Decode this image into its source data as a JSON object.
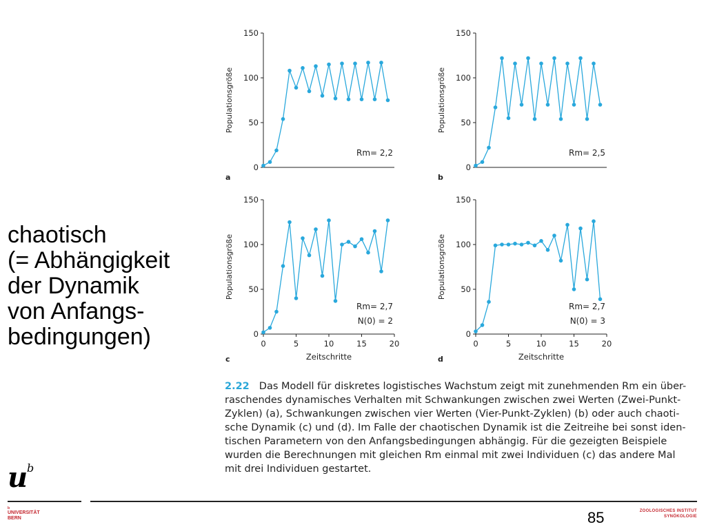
{
  "side_text": {
    "lines": [
      "chaotisch",
      "(= Abhängigkeit",
      "der Dynamik",
      "von Anfangs-",
      "bedingungen)"
    ]
  },
  "caption": {
    "number": "2.22",
    "lines": [
      "Das Modell für diskretes logistisches Wachstum zeigt mit zunehmenden Rm ein über-",
      "raschendes dynamisches Verhalten mit Schwankungen zwischen zwei Werten (Zwei-Punkt-",
      "Zyklen) (a), Schwankungen zwischen vier Werten (Vier-Punkt-Zyklen) (b) oder auch chaoti-",
      "sche Dynamik (c) und (d). Im Falle der chaotischen Dynamik ist die Zeitreihe bei sonst iden-",
      "tischen Parametern von den Anfangsbedingungen abhängig. Für die gezeigten Beispiele",
      "wurden die Berechnungen mit gleichen Rm einmal mit zwei Individuen (c) das andere Mal",
      "mit drei Individuen gestartet."
    ]
  },
  "footer": {
    "logo_u": "u",
    "logo_b": "b",
    "university_b": "b",
    "university_name": "UNIVERSITÄT",
    "university_city": "BERN",
    "page_number": "85",
    "institute_line1": "ZOOLOGISCHES INSTITUT",
    "institute_line2": "SYNÖKOLOGIE"
  },
  "colors": {
    "series": "#29a8dc",
    "axis": "#222222",
    "accent_red": "#c4262e"
  },
  "chart_data": [
    {
      "panel": "a",
      "type": "line",
      "ylabel": "Populationsgröße",
      "xlabel": "",
      "ylim": [
        0,
        150
      ],
      "yticks": [
        0,
        50,
        100,
        150
      ],
      "xlim": [
        0,
        20
      ],
      "xticks": [],
      "xticklabels_shown": false,
      "annotations": [
        "Rm= 2,2"
      ],
      "series": [
        {
          "x": [
            0,
            1,
            2,
            3,
            4,
            5,
            6,
            7,
            8,
            9,
            10,
            11,
            12,
            13,
            14,
            15,
            16,
            17,
            18,
            19
          ],
          "values": [
            2,
            6,
            19,
            54,
            108,
            89,
            111,
            85,
            113,
            80,
            115,
            77,
            116,
            76,
            116,
            76,
            117,
            76,
            117,
            75
          ]
        }
      ]
    },
    {
      "panel": "b",
      "type": "line",
      "ylabel": "Populationsgröße",
      "xlabel": "",
      "ylim": [
        0,
        150
      ],
      "yticks": [
        0,
        50,
        100,
        150
      ],
      "xlim": [
        0,
        20
      ],
      "xticks": [],
      "xticklabels_shown": false,
      "annotations": [
        "Rm= 2,5"
      ],
      "series": [
        {
          "x": [
            0,
            1,
            2,
            3,
            4,
            5,
            6,
            7,
            8,
            9,
            10,
            11,
            12,
            13,
            14,
            15,
            16,
            17,
            18,
            19
          ],
          "values": [
            2,
            6,
            22,
            67,
            122,
            55,
            116,
            70,
            122,
            54,
            116,
            70,
            122,
            54,
            116,
            70,
            122,
            54,
            116,
            70
          ]
        }
      ]
    },
    {
      "panel": "c",
      "type": "line",
      "ylabel": "Populationsgröße",
      "xlabel": "Zeitschritte",
      "ylim": [
        0,
        150
      ],
      "yticks": [
        0,
        50,
        100,
        150
      ],
      "xlim": [
        0,
        20
      ],
      "xticks": [
        0,
        5,
        10,
        15,
        20
      ],
      "xticklabels_shown": true,
      "annotations": [
        "Rm= 2,7",
        "N(0) = 2"
      ],
      "series": [
        {
          "x": [
            0,
            1,
            2,
            3,
            4,
            5,
            6,
            7,
            8,
            9,
            10,
            11,
            12,
            13,
            14,
            15,
            16,
            17,
            18,
            19
          ],
          "values": [
            2,
            7,
            25,
            76,
            125,
            40,
            107,
            88,
            117,
            65,
            127,
            37,
            100,
            103,
            98,
            106,
            91,
            115,
            70,
            127
          ]
        }
      ]
    },
    {
      "panel": "d",
      "type": "line",
      "ylabel": "Populationsgröße",
      "xlabel": "Zeitschritte",
      "ylim": [
        0,
        150
      ],
      "yticks": [
        0,
        50,
        100,
        150
      ],
      "xlim": [
        0,
        20
      ],
      "xticks": [
        0,
        5,
        10,
        15,
        20
      ],
      "xticklabels_shown": true,
      "annotations": [
        "Rm= 2,7",
        "N(0) = 3"
      ],
      "series": [
        {
          "x": [
            0,
            1,
            2,
            3,
            4,
            5,
            6,
            7,
            8,
            9,
            10,
            11,
            12,
            13,
            14,
            15,
            16,
            17,
            18,
            19
          ],
          "values": [
            3,
            10,
            36,
            99,
            100,
            100,
            101,
            100,
            102,
            99,
            104,
            94,
            110,
            82,
            122,
            50,
            118,
            61,
            126,
            39
          ]
        }
      ]
    }
  ]
}
